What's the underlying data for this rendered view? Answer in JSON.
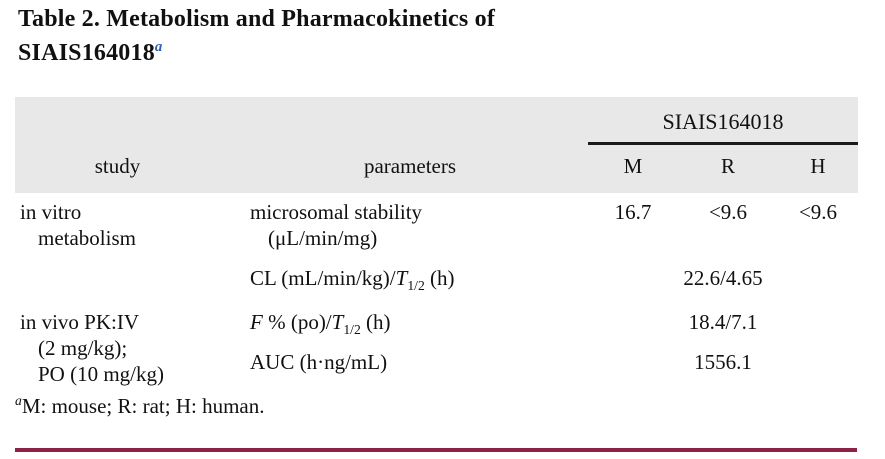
{
  "colors": {
    "accent_blue": "#2e5fb7",
    "rule_maroon": "#8d2148",
    "header_bg": "#e8e8e8",
    "rule_black": "#1a1a1a",
    "text": "#111111"
  },
  "title": {
    "line1": "Table 2. Metabolism and Pharmacokinetics of",
    "line2": "SIAIS164018",
    "footnote_marker": "a"
  },
  "table": {
    "group_header": "SIAIS164018",
    "col_study": "study",
    "col_parameters": "parameters",
    "col_m": "M",
    "col_r": "R",
    "col_h": "H",
    "rows": {
      "r1": {
        "study_line1": "in vitro",
        "study_line2": "metabolism",
        "param_line1": "microsomal stability",
        "param_line2": "(μL/min/mg)",
        "value_m": "16.7",
        "value_r": "<9.6",
        "value_h": "<9.6"
      },
      "r2": {
        "param_prefix": "CL (mL/min/kg)/",
        "param_italic": "T",
        "param_sub": "1/2",
        "param_suffix": " (h)",
        "value_merged": "22.6/4.65"
      },
      "r3": {
        "study_line1": "in vivo PK:IV",
        "study_line2": "(2 mg/kg);",
        "study_line3": "PO (10 mg/kg)",
        "param_italic1": "F",
        "param_mid": " % (po)/",
        "param_italic2": "T",
        "param_sub": "1/2",
        "param_suffix": " (h)",
        "value_merged": "18.4/7.1"
      },
      "r4": {
        "param": "AUC (h·ng/mL)",
        "value_merged": "1556.1"
      }
    }
  },
  "footnote": {
    "marker": "a",
    "text": "M: mouse; R: rat; H: human."
  }
}
